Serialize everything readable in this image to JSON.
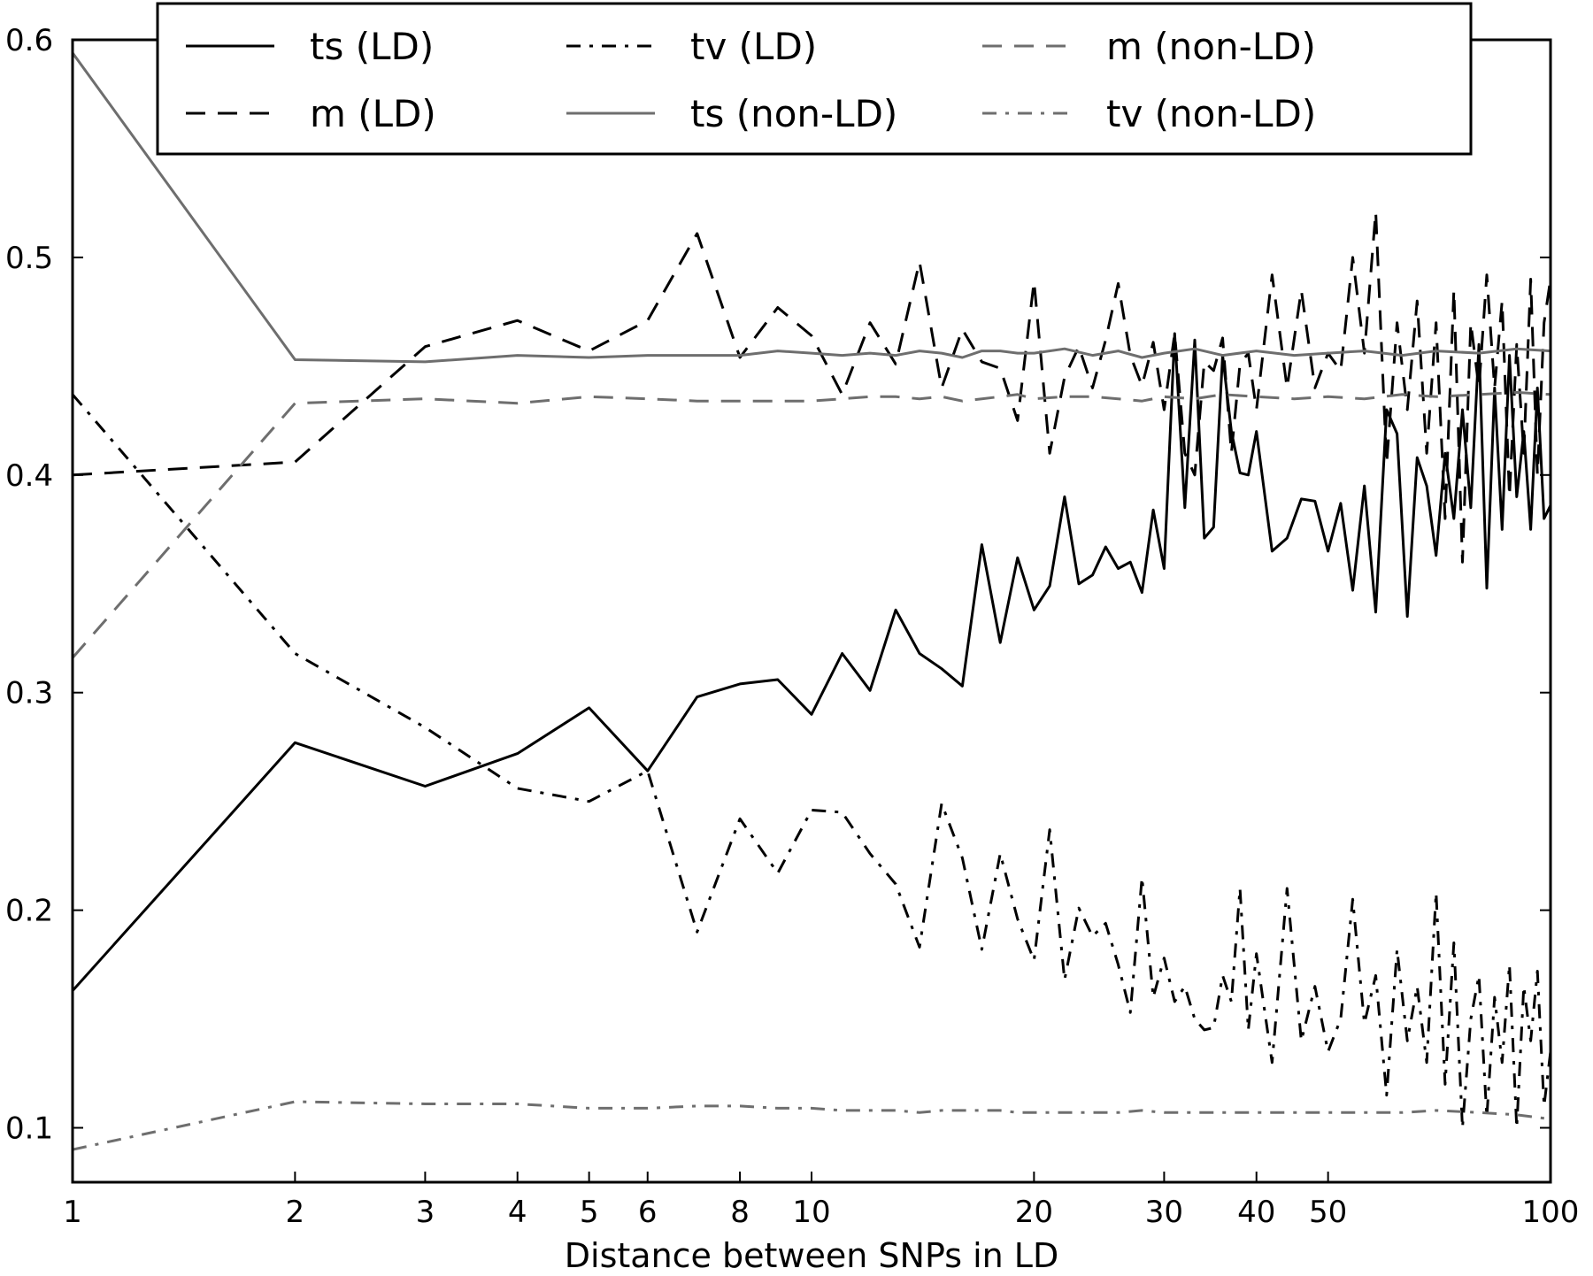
{
  "chart_data": {
    "type": "line",
    "title": "",
    "xlabel": "Distance between SNPs in LD",
    "ylabel": "",
    "xscale": "log",
    "xlim": [
      1,
      100
    ],
    "ylim": [
      0.075,
      0.6
    ],
    "xticks": [
      1,
      2,
      3,
      4,
      5,
      6,
      8,
      10,
      20,
      30,
      40,
      50,
      100
    ],
    "yticks": [
      0.1,
      0.2,
      0.3,
      0.4,
      0.5,
      0.6
    ],
    "grid": false,
    "legend_position": "top-center",
    "series": [
      {
        "name": "ts (LD)",
        "color": "#000000",
        "style": "solid",
        "x": [
          1,
          2,
          3,
          4,
          5,
          6,
          7,
          8,
          9,
          10,
          11,
          12,
          13,
          14,
          15,
          16,
          17,
          18,
          19,
          20,
          21,
          22,
          23,
          24,
          25,
          26,
          27,
          28,
          29,
          30,
          31,
          32,
          33,
          34,
          35,
          36,
          37,
          38,
          39,
          40,
          42,
          44,
          46,
          48,
          50,
          52,
          54,
          56,
          58,
          60,
          62,
          64,
          66,
          68,
          70,
          72,
          74,
          76,
          78,
          80,
          82,
          84,
          86,
          88,
          90,
          92,
          94,
          96,
          98,
          100
        ],
        "y": [
          0.163,
          0.277,
          0.257,
          0.272,
          0.293,
          0.264,
          0.298,
          0.304,
          0.306,
          0.29,
          0.318,
          0.301,
          0.338,
          0.318,
          0.311,
          0.303,
          0.368,
          0.323,
          0.362,
          0.338,
          0.349,
          0.39,
          0.35,
          0.354,
          0.367,
          0.357,
          0.36,
          0.346,
          0.384,
          0.357,
          0.465,
          0.385,
          0.462,
          0.371,
          0.376,
          0.455,
          0.42,
          0.401,
          0.4,
          0.42,
          0.365,
          0.371,
          0.389,
          0.388,
          0.365,
          0.387,
          0.347,
          0.395,
          0.337,
          0.43,
          0.419,
          0.335,
          0.408,
          0.395,
          0.363,
          0.41,
          0.38,
          0.43,
          0.385,
          0.46,
          0.348,
          0.44,
          0.375,
          0.455,
          0.39,
          0.42,
          0.375,
          0.44,
          0.38,
          0.386
        ]
      },
      {
        "name": "m (LD)",
        "color": "#000000",
        "style": "dashed",
        "x": [
          1,
          2,
          3,
          4,
          5,
          6,
          7,
          8,
          9,
          10,
          11,
          12,
          13,
          14,
          15,
          16,
          17,
          18,
          19,
          20,
          21,
          22,
          23,
          24,
          25,
          26,
          27,
          28,
          29,
          30,
          31,
          32,
          33,
          34,
          35,
          36,
          37,
          38,
          39,
          40,
          42,
          44,
          46,
          48,
          50,
          52,
          54,
          56,
          58,
          60,
          62,
          64,
          66,
          68,
          70,
          72,
          74,
          76,
          78,
          80,
          82,
          84,
          86,
          88,
          90,
          92,
          94,
          96,
          98,
          100
        ],
        "y": [
          0.4,
          0.406,
          0.459,
          0.471,
          0.457,
          0.471,
          0.511,
          0.454,
          0.477,
          0.464,
          0.437,
          0.47,
          0.451,
          0.498,
          0.44,
          0.467,
          0.452,
          0.449,
          0.425,
          0.489,
          0.41,
          0.445,
          0.459,
          0.44,
          0.462,
          0.488,
          0.455,
          0.441,
          0.461,
          0.43,
          0.465,
          0.41,
          0.4,
          0.452,
          0.448,
          0.463,
          0.41,
          0.451,
          0.456,
          0.43,
          0.492,
          0.44,
          0.485,
          0.44,
          0.456,
          0.448,
          0.5,
          0.456,
          0.521,
          0.405,
          0.47,
          0.43,
          0.48,
          0.41,
          0.47,
          0.38,
          0.485,
          0.36,
          0.47,
          0.44,
          0.492,
          0.44,
          0.48,
          0.39,
          0.46,
          0.41,
          0.49,
          0.4,
          0.47,
          0.49
        ]
      },
      {
        "name": "tv (LD)",
        "color": "#000000",
        "style": "dashdot",
        "x": [
          1,
          2,
          3,
          4,
          5,
          6,
          7,
          8,
          9,
          10,
          11,
          12,
          13,
          14,
          15,
          16,
          17,
          18,
          19,
          20,
          21,
          22,
          23,
          24,
          25,
          26,
          27,
          28,
          29,
          30,
          31,
          32,
          33,
          34,
          35,
          36,
          37,
          38,
          39,
          40,
          42,
          44,
          46,
          48,
          50,
          52,
          54,
          56,
          58,
          60,
          62,
          64,
          66,
          68,
          70,
          72,
          74,
          76,
          78,
          80,
          82,
          84,
          86,
          88,
          90,
          92,
          94,
          96,
          98,
          100
        ],
        "y": [
          0.437,
          0.318,
          0.284,
          0.256,
          0.25,
          0.264,
          0.19,
          0.242,
          0.217,
          0.246,
          0.245,
          0.226,
          0.212,
          0.183,
          0.249,
          0.224,
          0.182,
          0.226,
          0.196,
          0.177,
          0.237,
          0.168,
          0.201,
          0.188,
          0.194,
          0.175,
          0.153,
          0.215,
          0.16,
          0.178,
          0.158,
          0.165,
          0.15,
          0.145,
          0.146,
          0.17,
          0.158,
          0.21,
          0.145,
          0.18,
          0.13,
          0.21,
          0.14,
          0.165,
          0.135,
          0.15,
          0.205,
          0.148,
          0.17,
          0.115,
          0.182,
          0.14,
          0.165,
          0.13,
          0.208,
          0.12,
          0.185,
          0.1,
          0.15,
          0.17,
          0.105,
          0.16,
          0.13,
          0.175,
          0.1,
          0.165,
          0.14,
          0.172,
          0.11,
          0.135
        ]
      },
      {
        "name": "ts (non-LD)",
        "color": "#6e6e6e",
        "style": "solid",
        "x": [
          1,
          2,
          3,
          4,
          5,
          6,
          7,
          8,
          9,
          10,
          11,
          12,
          13,
          14,
          15,
          16,
          17,
          18,
          19,
          20,
          22,
          24,
          26,
          28,
          30,
          33,
          36,
          40,
          45,
          50,
          56,
          63,
          70,
          80,
          90,
          100
        ],
        "y": [
          0.594,
          0.453,
          0.452,
          0.455,
          0.454,
          0.455,
          0.455,
          0.455,
          0.457,
          0.456,
          0.455,
          0.456,
          0.455,
          0.457,
          0.456,
          0.454,
          0.457,
          0.457,
          0.456,
          0.456,
          0.458,
          0.455,
          0.457,
          0.454,
          0.456,
          0.458,
          0.455,
          0.457,
          0.455,
          0.456,
          0.457,
          0.455,
          0.457,
          0.456,
          0.458,
          0.457
        ]
      },
      {
        "name": "m (non-LD)",
        "color": "#6e6e6e",
        "style": "dashed",
        "x": [
          1,
          2,
          3,
          4,
          5,
          6,
          7,
          8,
          9,
          10,
          11,
          12,
          13,
          14,
          15,
          16,
          17,
          18,
          19,
          20,
          22,
          24,
          26,
          28,
          30,
          33,
          36,
          40,
          45,
          50,
          56,
          63,
          70,
          80,
          90,
          100
        ],
        "y": [
          0.316,
          0.433,
          0.435,
          0.433,
          0.436,
          0.435,
          0.434,
          0.434,
          0.434,
          0.434,
          0.435,
          0.436,
          0.436,
          0.435,
          0.436,
          0.434,
          0.435,
          0.436,
          0.437,
          0.435,
          0.436,
          0.436,
          0.435,
          0.434,
          0.436,
          0.435,
          0.437,
          0.436,
          0.435,
          0.436,
          0.435,
          0.437,
          0.436,
          0.437,
          0.438,
          0.437
        ]
      },
      {
        "name": "tv (non-LD)",
        "color": "#6e6e6e",
        "style": "dashdot",
        "x": [
          1,
          2,
          3,
          4,
          5,
          6,
          7,
          8,
          9,
          10,
          11,
          12,
          13,
          14,
          15,
          16,
          17,
          18,
          19,
          20,
          22,
          24,
          26,
          28,
          30,
          33,
          36,
          40,
          45,
          50,
          56,
          63,
          70,
          80,
          90,
          100
        ],
        "y": [
          0.09,
          0.112,
          0.111,
          0.111,
          0.109,
          0.109,
          0.11,
          0.11,
          0.109,
          0.109,
          0.108,
          0.108,
          0.108,
          0.107,
          0.108,
          0.108,
          0.108,
          0.108,
          0.107,
          0.107,
          0.107,
          0.107,
          0.107,
          0.108,
          0.107,
          0.107,
          0.107,
          0.107,
          0.107,
          0.107,
          0.107,
          0.107,
          0.108,
          0.107,
          0.106,
          0.104
        ]
      }
    ]
  }
}
